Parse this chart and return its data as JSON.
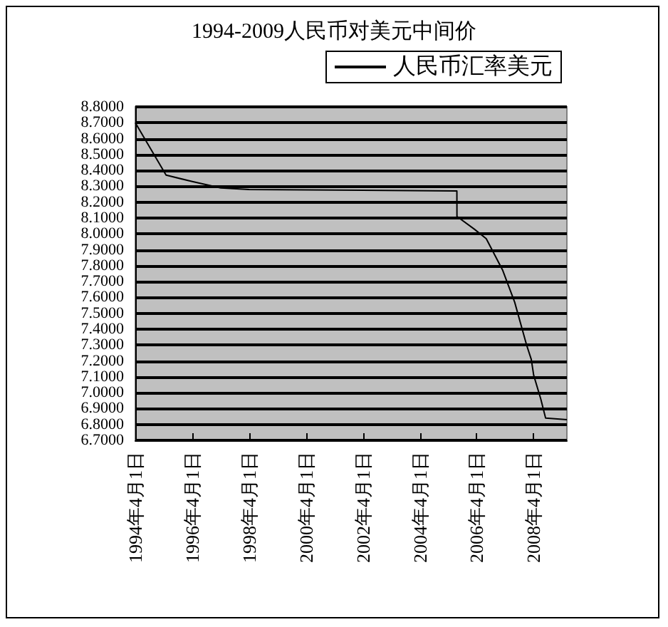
{
  "chart_data": {
    "type": "line",
    "title": "1994-2009人民币对美元中间价",
    "legend": "top right",
    "grid": "y",
    "marker": "none",
    "line_style": "solid",
    "x": [
      "1994-04-01",
      "1995-05",
      "1996-04",
      "1997-04",
      "1998-04",
      "2005-07-20",
      "2005-07-21",
      "2006-03",
      "2006-08",
      "2007-03",
      "2007-08",
      "2008-01",
      "2008-03",
      "2008-04",
      "2008-07",
      "2008-09",
      "2009-06"
    ],
    "series": [
      {
        "name": "人民币汇率美元",
        "color": "#000000",
        "values": [
          8.7,
          8.37,
          8.33,
          8.29,
          8.28,
          8.27,
          8.11,
          8.03,
          7.97,
          7.77,
          7.57,
          7.3,
          7.21,
          7.11,
          6.96,
          6.84,
          6.83
        ]
      }
    ],
    "xlim": [
      "1994-04-01",
      "2009-06"
    ],
    "xticks": [
      {
        "value": "1994-04-01",
        "label": "1994年4月1日"
      },
      {
        "value": "1996-04-01",
        "label": "1996年4月1日"
      },
      {
        "value": "1998-04-01",
        "label": "1998年4月1日"
      },
      {
        "value": "2000-04-01",
        "label": "2000年4月1日"
      },
      {
        "value": "2002-04-01",
        "label": "2002年4月1日"
      },
      {
        "value": "2004-04-01",
        "label": "2004年4月1日"
      },
      {
        "value": "2006-04-01",
        "label": "2006年4月1日"
      },
      {
        "value": "2008-04-01",
        "label": "2008年4月1日"
      }
    ],
    "ylim": [
      6.7,
      8.8
    ],
    "yticks": [
      {
        "value": 6.7,
        "label": "6.7000"
      },
      {
        "value": 6.8,
        "label": "6.8000"
      },
      {
        "value": 6.9,
        "label": "6.9000"
      },
      {
        "value": 7.0,
        "label": "7.0000"
      },
      {
        "value": 7.1,
        "label": "7.1000"
      },
      {
        "value": 7.2,
        "label": "7.2000"
      },
      {
        "value": 7.3,
        "label": "7.3000"
      },
      {
        "value": 7.4,
        "label": "7.4000"
      },
      {
        "value": 7.5,
        "label": "7.5000"
      },
      {
        "value": 7.6,
        "label": "7.6000"
      },
      {
        "value": 7.7,
        "label": "7.7000"
      },
      {
        "value": 7.8,
        "label": "7.8000"
      },
      {
        "value": 7.9,
        "label": "7.9000"
      },
      {
        "value": 8.0,
        "label": "8.0000"
      },
      {
        "value": 8.1,
        "label": "8.1000"
      },
      {
        "value": 8.2,
        "label": "8.2000"
      },
      {
        "value": 8.3,
        "label": "8.3000"
      },
      {
        "value": 8.4,
        "label": "8.4000"
      },
      {
        "value": 8.5,
        "label": "8.5000"
      },
      {
        "value": 8.6,
        "label": "8.6000"
      },
      {
        "value": 8.7,
        "label": "8.7000"
      },
      {
        "value": 8.8,
        "label": "8.8000"
      }
    ]
  }
}
